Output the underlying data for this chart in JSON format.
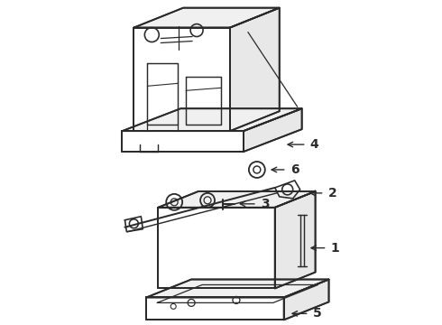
{
  "background_color": "#ffffff",
  "line_color": "#2a2a2a",
  "line_width": 1.3,
  "figsize": [
    4.9,
    3.6
  ],
  "dpi": 100
}
